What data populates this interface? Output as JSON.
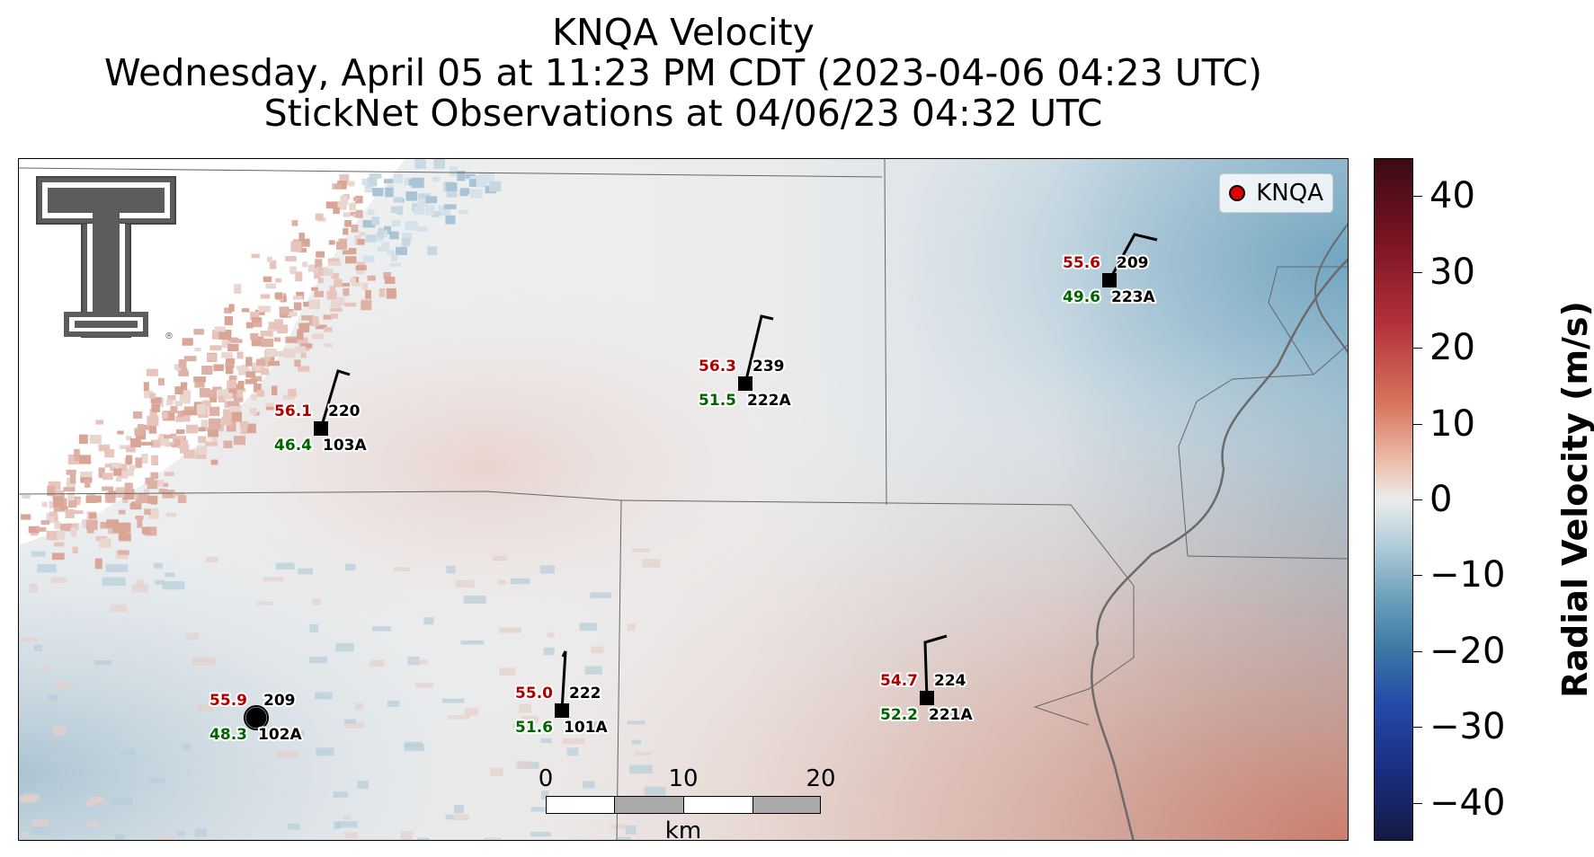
{
  "title": {
    "line1": "KNQA Velocity",
    "line2": "Wednesday, April 05 at 11:23 PM CDT (2023-04-06 04:23 UTC)",
    "line3": "StickNet Observations at 04/06/23 04:32 UTC"
  },
  "legend": {
    "label": "KNQA",
    "marker_color": "#e00000"
  },
  "scale_bar": {
    "ticks": [
      "0",
      "10",
      "20"
    ],
    "unit": "km"
  },
  "colorbar": {
    "title": "Radial Velocity (m/s)",
    "range": [
      -45,
      45
    ],
    "ticks": [
      "40",
      "30",
      "20",
      "10",
      "0",
      "−10",
      "−20",
      "−30",
      "−40"
    ]
  },
  "stations": [
    {
      "id": "103A",
      "temp": "56.1",
      "dew": "46.4",
      "dir": "220",
      "marker": "square"
    },
    {
      "id": "222A",
      "temp": "56.3",
      "dew": "51.5",
      "dir": "239",
      "marker": "square"
    },
    {
      "id": "223A",
      "temp": "55.6",
      "dew": "49.6",
      "dir": "209",
      "marker": "square"
    },
    {
      "id": "102A",
      "temp": "55.9",
      "dew": "48.3",
      "dir": "209",
      "marker": "circle"
    },
    {
      "id": "101A",
      "temp": "55.0",
      "dew": "51.6",
      "dir": "222",
      "marker": "square"
    },
    {
      "id": "221A",
      "temp": "54.7",
      "dew": "52.2",
      "dir": "224",
      "marker": "square"
    }
  ],
  "colors": {
    "temp_text": "#b00000",
    "dew_text": "#006400",
    "inbound": "#4a86ad",
    "outbound": "#c8584a",
    "neutral": "#ececec"
  },
  "logo": {
    "name": "double-t-logo",
    "mark": "®"
  }
}
